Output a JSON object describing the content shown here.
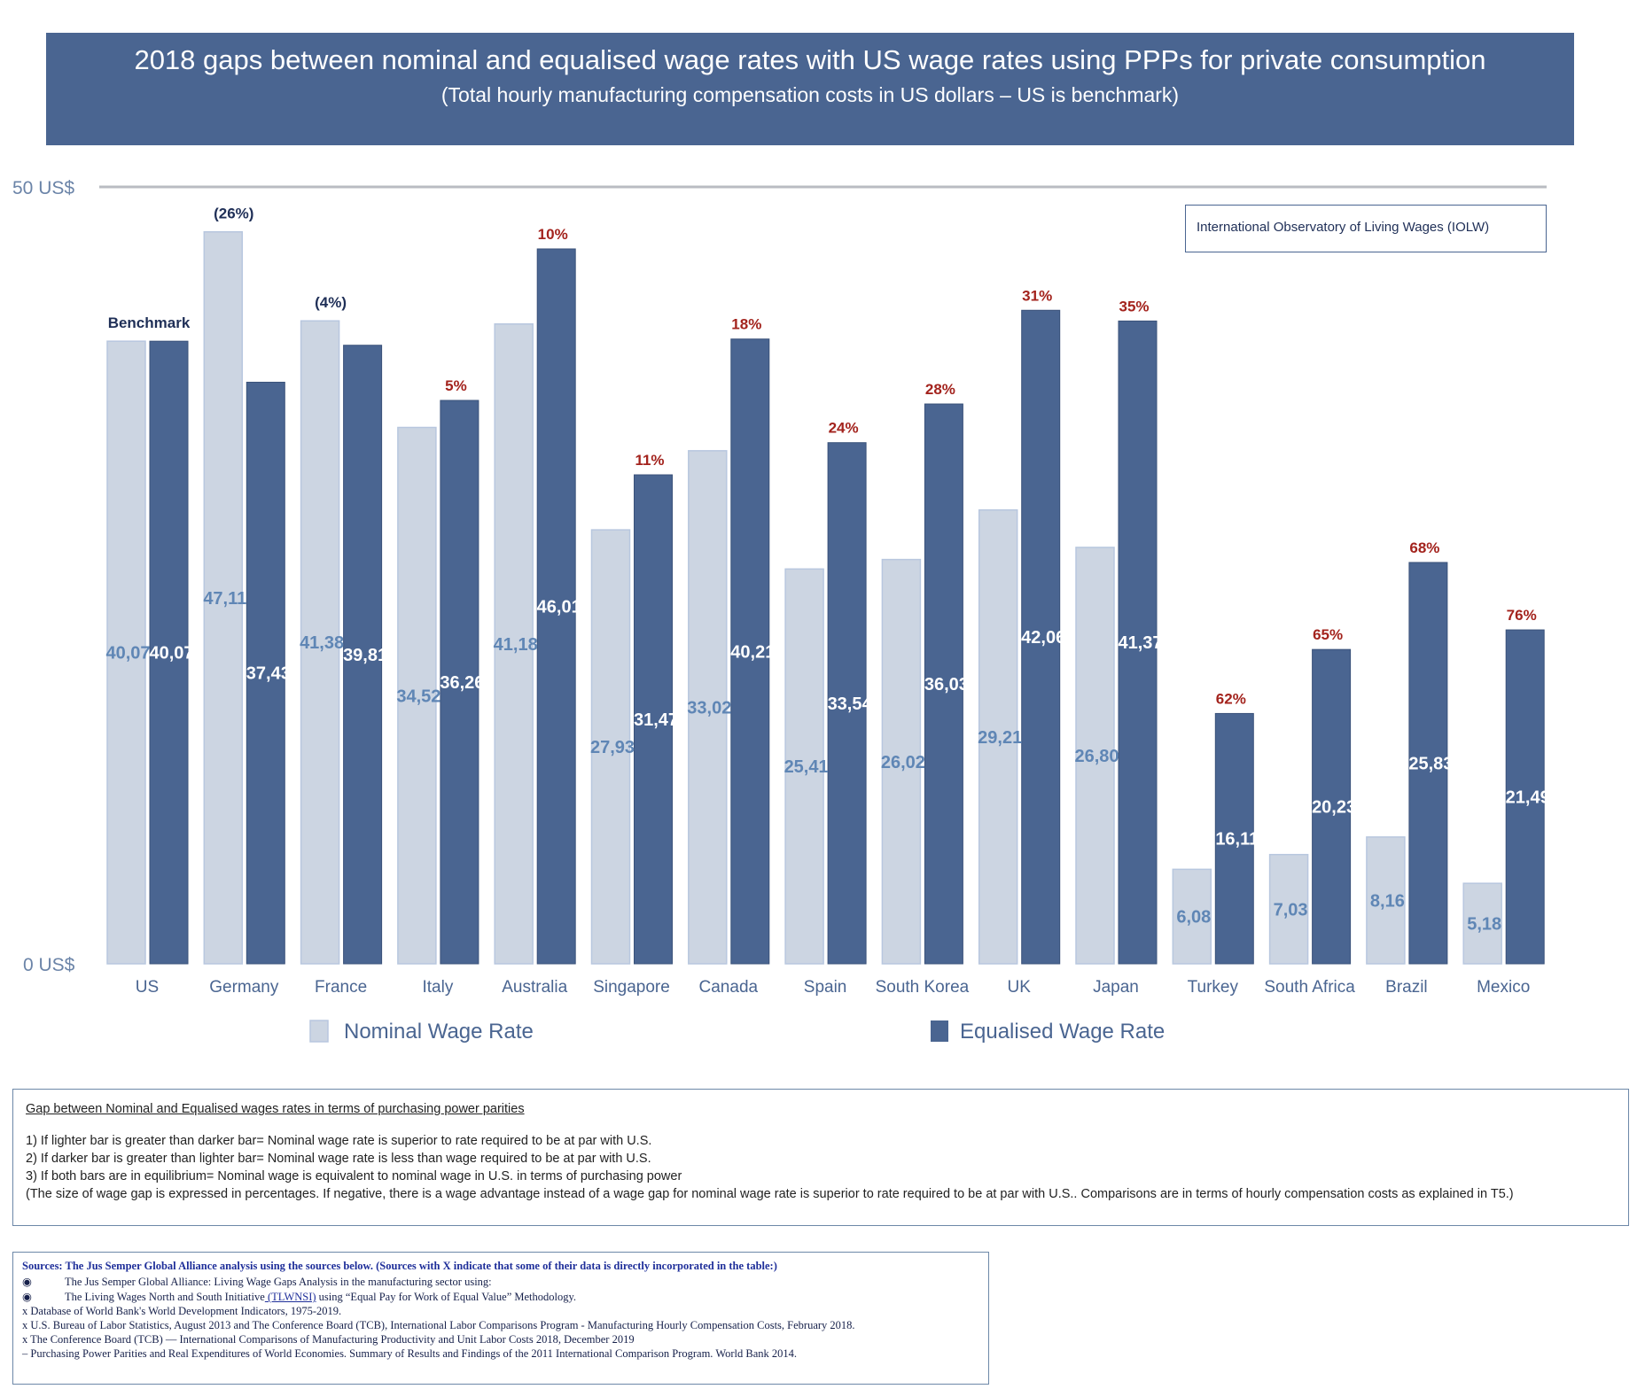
{
  "title": {
    "line1": "2018 gaps between nominal and equalised wage rates with US wage rates using PPPs for private consumption",
    "line2": "(Total hourly manufacturing compensation costs in US dollars – US is benchmark)"
  },
  "iolw_label": "International Observatory of Living Wages (IOLW)",
  "colors": {
    "nominal": "#ccd5e2",
    "equalised": "#4a6591",
    "gap_positive": "#a3231d",
    "gap_negative": "#1f2f57"
  },
  "chart_data": {
    "type": "bar",
    "title": "2018 gaps between nominal and equalised wage rates with US wage rates using PPPs for private consumption",
    "subtitle": "(Total hourly manufacturing compensation costs in US dollars – US is benchmark)",
    "ylim": [
      0,
      50
    ],
    "y_tick_labels": [
      "0 US$",
      "50 US$"
    ],
    "categories": [
      "US",
      "Germany",
      "France",
      "Italy",
      "Australia",
      "Singapore",
      "Canada",
      "Spain",
      "South Korea",
      "UK",
      "Japan",
      "Turkey",
      "South Africa",
      "Brazil",
      "Mexico"
    ],
    "series": [
      {
        "name": "Nominal Wage Rate",
        "values": [
          40.07,
          47.11,
          41.38,
          34.52,
          41.18,
          27.93,
          33.02,
          25.41,
          26.02,
          29.21,
          26.8,
          6.08,
          7.03,
          8.16,
          5.18
        ],
        "labels": [
          "40,07",
          "47,11",
          "41,38",
          "34,52",
          "41,18",
          "27,93",
          "33,02",
          "25,41",
          "26,02",
          "29,21",
          "26,80",
          "6,08",
          "7,03",
          "8,16",
          "5,18"
        ]
      },
      {
        "name": "Equalised Wage Rate",
        "values": [
          40.07,
          37.43,
          39.81,
          36.26,
          46.01,
          31.47,
          40.21,
          33.54,
          36.03,
          42.06,
          41.37,
          16.11,
          20.23,
          25.83,
          21.49
        ],
        "labels": [
          "40,07",
          "37,43",
          "39,81",
          "36,26",
          "46,01",
          "31,47",
          "40,21",
          "33,54",
          "36,03",
          "42,06",
          "41,37",
          "16,11",
          "20,23",
          "25,83",
          "21,49"
        ]
      }
    ],
    "gap_labels": [
      "Benchmark",
      "(26%)",
      "(4%)",
      "5%",
      "10%",
      "11%",
      "18%",
      "24%",
      "28%",
      "31%",
      "35%",
      "62%",
      "65%",
      "68%",
      "76%"
    ],
    "gap_type": [
      "benchmark",
      "negative",
      "negative",
      "positive",
      "positive",
      "positive",
      "positive",
      "positive",
      "positive",
      "positive",
      "positive",
      "positive",
      "positive",
      "positive",
      "positive"
    ],
    "legend": [
      "Nominal Wage Rate",
      "Equalised Wage Rate"
    ],
    "legend_position": "bottom"
  },
  "notes": {
    "heading": "Gap between Nominal and Equalised wages rates in terms of purchasing power parities",
    "line1": "1) If lighter bar is greater than darker bar= Nominal wage rate is superior to rate required to be at par with U.S.",
    "line2": "2) If darker bar is greater than lighter bar= Nominal wage rate is less than wage  required to be at par with U.S.",
    "line3": "3) If both bars are in equilibrium=  Nominal wage is equivalent to nominal wage in U.S. in terms of purchasing power",
    "line4": "(The size of wage gap is expressed in percentages.  If negative, there is a wage advantage instead of a wage gap for nominal wage rate is superior to rate required to be at par with U.S.. Comparisons are in terms of hourly compensation costs as explained in T5.)"
  },
  "sources": {
    "heading": "Sources: The Jus Semper Global Alliance analysis using the sources below.    (Sources with X indicate that some of their data is directly incorporated in the table:)",
    "bullet_symbol": "◉",
    "item1": "The Jus Semper Global Alliance:  Living Wage Gaps Analysis in the manufacturing sector using:",
    "item2_text": "The Living Wages North and South Initiative",
    "item2_link": " (TLWNSI)",
    "item2_tail": " using “Equal Pay for Work of Equal Value” Methodology.",
    "item3": "x Database of World Bank's World Development Indicators, 1975-2019.",
    "item4": "x U.S. Bureau of Labor Statistics, August 2013 and The Conference Board (TCB), International Labor Comparisons Program - Manufacturing Hourly Compensation Costs, February 2018.",
    "item5": "x The Conference Board (TCB) — International Comparisons of Manufacturing Productivity and Unit Labor Costs 2018, December 2019",
    "item6": " – Purchasing Power Parities and Real Expenditures of World Economies.  Summary of Results and Findings of the 2011 International Comparison Program.  World Bank 2014."
  }
}
